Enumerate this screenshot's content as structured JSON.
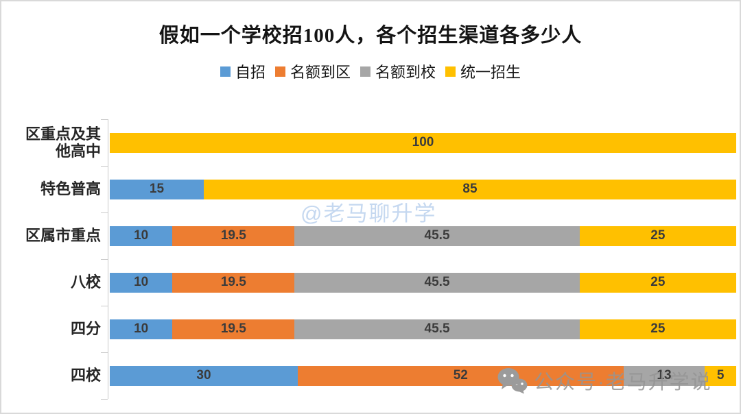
{
  "chart_data": {
    "type": "bar",
    "orientation": "horizontal-stacked",
    "title": "假如一个学校招100人，各个招生渠道各多少人",
    "categories": [
      "区重点及其他高中",
      "特色普高",
      "区属市重点",
      "八校",
      "四分",
      "四校"
    ],
    "series": [
      {
        "name": "自招",
        "color": "#5B9BD5",
        "values": [
          0,
          15,
          10,
          10,
          10,
          30
        ]
      },
      {
        "name": "名额到区",
        "color": "#ED7D31",
        "values": [
          0,
          0,
          19.5,
          19.5,
          19.5,
          52
        ]
      },
      {
        "name": "名额到校",
        "color": "#A6A6A6",
        "values": [
          0,
          0,
          45.5,
          45.5,
          45.5,
          13
        ]
      },
      {
        "name": "统一招生",
        "color": "#FFC000",
        "values": [
          100,
          85,
          25,
          25,
          25,
          5
        ]
      }
    ],
    "xlim": [
      0,
      100
    ],
    "legend_position": "top",
    "grid": false,
    "axis_color": "#C9C9C9",
    "data_label_color": "#3B3B3B"
  },
  "watermarks": {
    "center": {
      "text": "@老马聊升学",
      "color": "#C5D8F0"
    },
    "bottom": {
      "text": "公众号·老马升学说",
      "color": "#949494",
      "icon": "wechat-icon"
    }
  }
}
